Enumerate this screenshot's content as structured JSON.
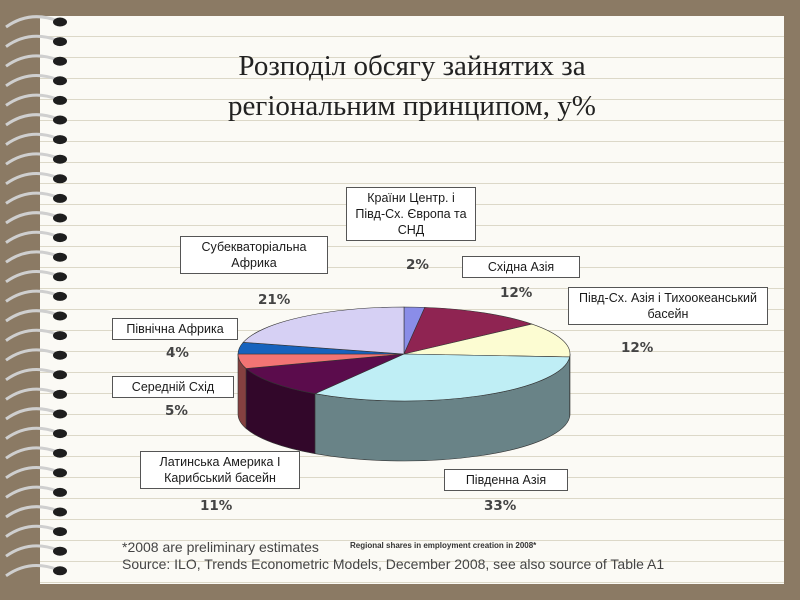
{
  "title": {
    "line1": "Розподіл обсягу зайнятих за",
    "line2": "регіональним принципом, у%"
  },
  "callouts": {
    "cee": "Країни Центр. і Півд-Сх. Європа та СНД",
    "east_asia": "Східна Азія",
    "sea_pacific": "Півд-Сх. Азія і Тихоокеанський  басейн",
    "south_asia": "Південна Азія",
    "latam": "Латинська Америка І Карибський басейн",
    "middle_east": "Середній Схід",
    "north_africa": "Північна Африка",
    "ssa": "Субекваторіальна Африка"
  },
  "footnote": "*2008 are preliminary estimates",
  "source": "Source: ILO, Trends Econometric Models, December 2008, see also source of Table A1",
  "chart_caption": "Regional shares in employment creation in 2008*",
  "chart_data": {
    "type": "pie",
    "slices": [
      {
        "key": "cee",
        "label": "Країни Центр. і Півд-Сх. Європа та СНД",
        "value": 2,
        "label_text": "2%",
        "color": "#8a8de8"
      },
      {
        "key": "east_asia",
        "label": "Східна Азія",
        "value": 12,
        "label_text": "12%",
        "color": "#8f2452"
      },
      {
        "key": "sea_pacific",
        "label": "Півд-Сх. Азія і Тихоокеанський  басейн",
        "value": 12,
        "label_text": "12%",
        "color": "#fcfcd2"
      },
      {
        "key": "south_asia",
        "label": "Південна Азія",
        "value": 33,
        "label_text": "33%",
        "color": "#bfeef5"
      },
      {
        "key": "latam",
        "label": "Латинська Америка І Карибський басейн",
        "value": 11,
        "label_text": "11%",
        "color": "#5b0c4c"
      },
      {
        "key": "middle_east",
        "label": "Середній Схід",
        "value": 5,
        "label_text": "5%",
        "color": "#f27474"
      },
      {
        "key": "north_africa",
        "label": "Північна Африка",
        "value": 4,
        "label_text": "4%",
        "color": "#1762bd"
      },
      {
        "key": "ssa",
        "label": "Субекваторіальна Африка",
        "value": 21,
        "label_text": "21%",
        "color": "#d6d0f4"
      }
    ]
  }
}
